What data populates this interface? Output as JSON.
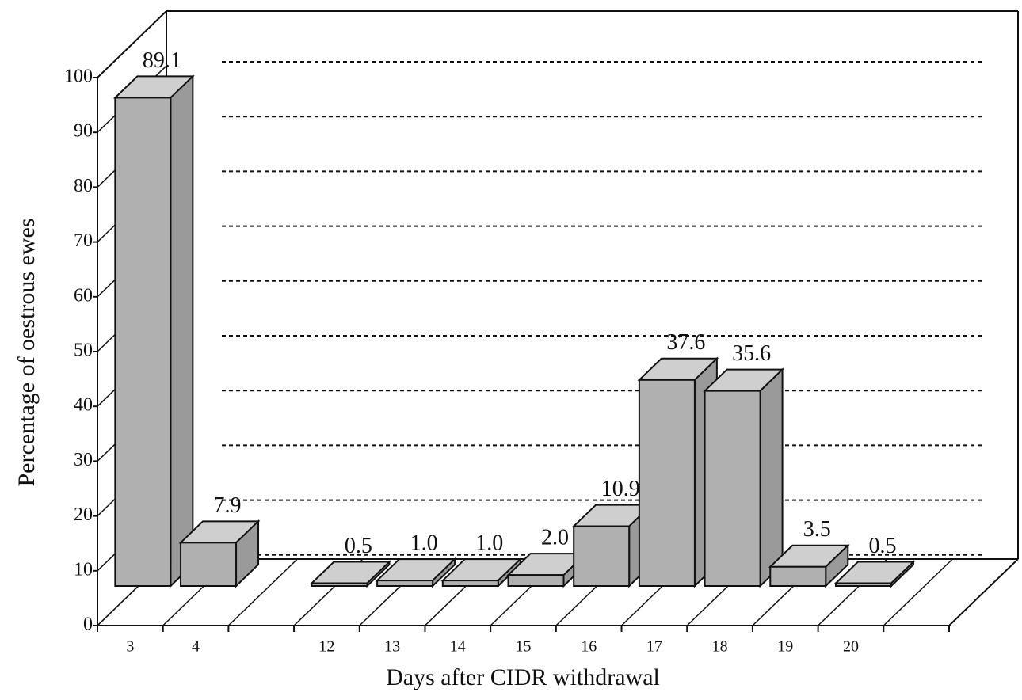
{
  "chart_data": {
    "type": "bar3d",
    "xlabel": "Days after CIDR withdrawal",
    "ylabel": "Percentage of oestrous ewes",
    "categories": [
      "3",
      "4",
      null,
      "12",
      "13",
      "14",
      "15",
      "16",
      "17",
      "18",
      "19",
      "20",
      null
    ],
    "values": [
      89.1,
      7.9,
      null,
      0.5,
      1.0,
      1.0,
      2.0,
      10.9,
      37.6,
      35.6,
      3.5,
      0.5,
      null
    ],
    "value_labels": [
      "89.1",
      "7.9",
      null,
      "0.5",
      "1.0",
      "1.0",
      "2.0",
      "10.9",
      "37.6",
      "35.6",
      "3.5",
      "0.5",
      null
    ],
    "color": "#b0b0b0",
    "ylim": [
      0,
      100
    ],
    "yticks": [
      0,
      10,
      20,
      30,
      40,
      50,
      60,
      70,
      80,
      90,
      100
    ],
    "grid": true
  }
}
